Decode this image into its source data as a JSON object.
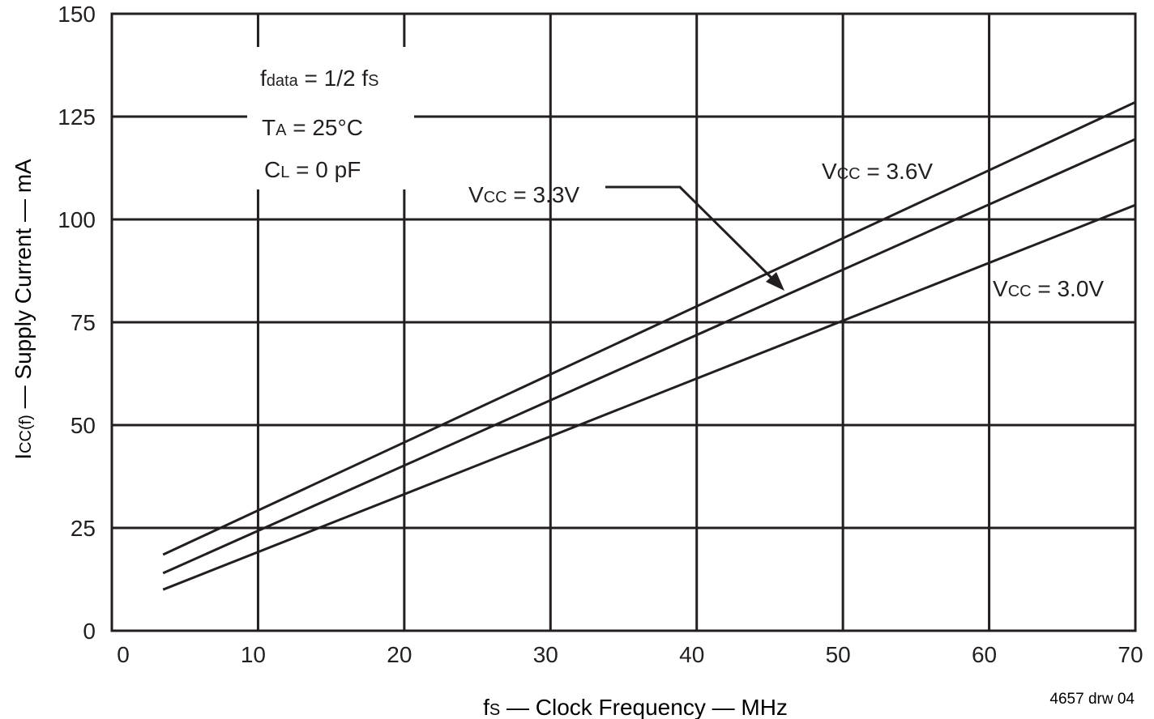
{
  "chart_data": {
    "type": "line",
    "xlabel": {
      "base": "f",
      "sub": "S",
      "rest": " — Clock Frequency — MHz"
    },
    "ylabel": {
      "base": "I",
      "sub": "CC(f)",
      "rest": " — Supply Current — mA"
    },
    "xlim": [
      0,
      70
    ],
    "ylim": [
      0,
      150
    ],
    "xticks": [
      0,
      10,
      20,
      30,
      40,
      50,
      60,
      70
    ],
    "yticks": [
      0,
      25,
      50,
      75,
      100,
      125,
      150
    ],
    "grid": true,
    "series": [
      {
        "name": "VCC = 3.6V",
        "label": {
          "base": "V",
          "sub": "CC",
          "rest": " = 3.6V"
        },
        "points": [
          [
            3.5,
            18.5
          ],
          [
            70,
            128.5
          ]
        ]
      },
      {
        "name": "VCC = 3.3V",
        "label": {
          "base": "V",
          "sub": "CC",
          "rest": " = 3.3V"
        },
        "points": [
          [
            3.5,
            14
          ],
          [
            70,
            119.5
          ]
        ]
      },
      {
        "name": "VCC = 3.0V",
        "label": {
          "base": "V",
          "sub": "CC",
          "rest": " = 3.0V"
        },
        "points": [
          [
            3.5,
            10
          ],
          [
            70,
            103.5
          ]
        ]
      }
    ],
    "conditions": [
      {
        "base": "f",
        "sub": "data",
        "rest": " = 1/2 f",
        "sub2": "S"
      },
      {
        "base": "T",
        "sub": "A",
        "rest": " = 25°C"
      },
      {
        "base": "C",
        "sub": "L",
        "rest": " = 0 pF"
      }
    ],
    "footnote": "4657 drw 04",
    "colors": {
      "line": "#231f20",
      "background": "#ffffff"
    }
  }
}
